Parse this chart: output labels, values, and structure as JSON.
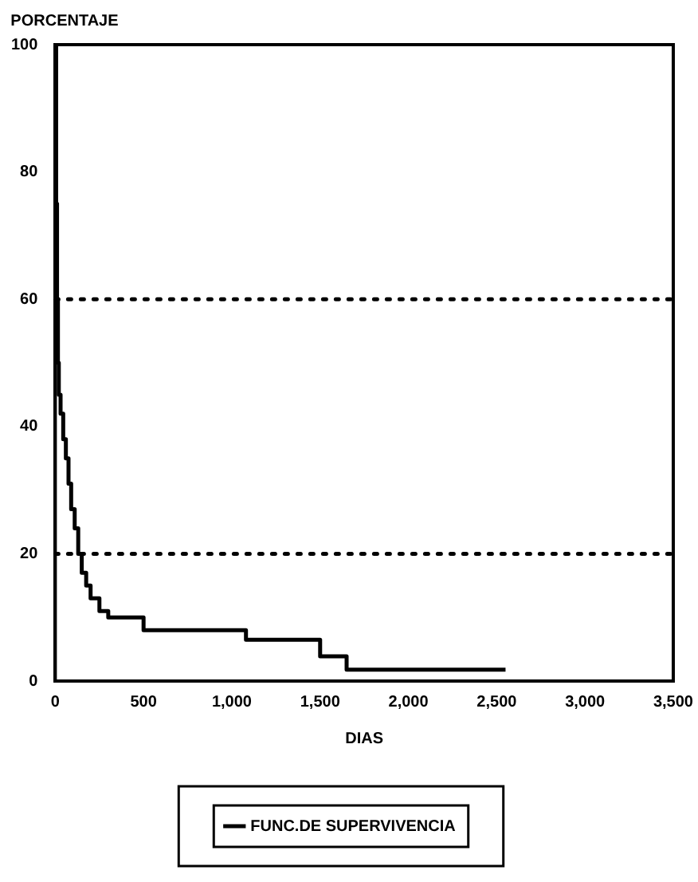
{
  "chart_data": {
    "type": "step",
    "ylabel": "PORCENTAJE",
    "xlabel": "DIAS",
    "series": [
      {
        "name": "FUNC.DE SUPERVIVENCIA",
        "color": "#000000",
        "x": [
          0,
          5,
          10,
          15,
          20,
          30,
          45,
          60,
          75,
          90,
          110,
          130,
          150,
          175,
          200,
          250,
          300,
          500,
          1080,
          1500,
          1650,
          2550
        ],
        "values": [
          100,
          75,
          60,
          50,
          45,
          42,
          38,
          35,
          31,
          27,
          24,
          20,
          17,
          15,
          13,
          11,
          10,
          8,
          6.5,
          3.9,
          1.8,
          1.8
        ]
      }
    ],
    "xlim": [
      0,
      3500
    ],
    "xticks": [
      0,
      500,
      {
        "value": 1000,
        "label": "1,000"
      },
      {
        "value": 1500,
        "label": "1,500"
      },
      {
        "value": 2000,
        "label": "2,000"
      },
      {
        "value": 2500,
        "label": "2,500"
      },
      {
        "value": 3000,
        "label": "3,000"
      },
      {
        "value": 3500,
        "label": "3,500"
      }
    ],
    "ylim": [
      0,
      100
    ],
    "yticks": [
      0,
      20,
      40,
      60,
      80,
      100
    ],
    "ref_lines": [
      {
        "axis": "y",
        "value": 20,
        "line_style": "dotted"
      },
      {
        "axis": "y",
        "value": 60,
        "line_style": "dotted"
      }
    ],
    "grid": false,
    "legend": "bottom",
    "marker": "none",
    "line_style": "solid"
  }
}
